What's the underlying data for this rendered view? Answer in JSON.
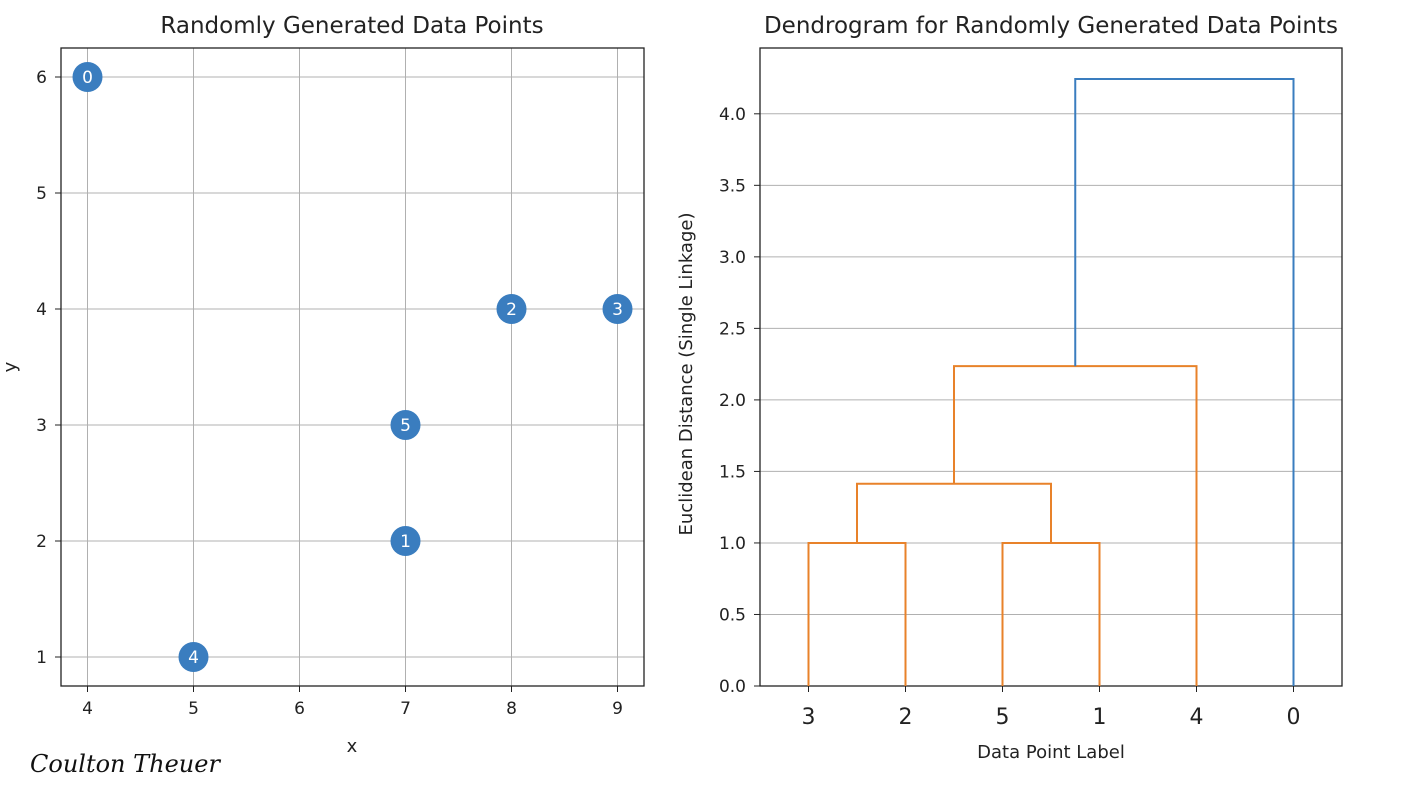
{
  "chart_data": [
    {
      "type": "scatter",
      "title": "Randomly Generated Data Points",
      "xlabel": "x",
      "ylabel": "y",
      "xlim": [
        3.75,
        9.25
      ],
      "ylim": [
        0.75,
        6.25
      ],
      "xticks": [
        "4",
        "5",
        "6",
        "7",
        "8",
        "9"
      ],
      "yticks": [
        "1",
        "2",
        "3",
        "4",
        "5",
        "6"
      ],
      "grid": true,
      "marker_color": "#3a7dbf",
      "points": [
        {
          "label": "0",
          "x": 4,
          "y": 6
        },
        {
          "label": "1",
          "x": 7,
          "y": 2
        },
        {
          "label": "2",
          "x": 8,
          "y": 4
        },
        {
          "label": "3",
          "x": 9,
          "y": 4
        },
        {
          "label": "4",
          "x": 5,
          "y": 1
        },
        {
          "label": "5",
          "x": 7,
          "y": 3
        }
      ]
    },
    {
      "type": "dendrogram",
      "title": "Dendrogram for Randomly Generated Data Points",
      "xlabel": "Data Point Label",
      "ylabel": "Euclidean Distance (Single Linkage)",
      "ylim": [
        0,
        4.46
      ],
      "yticks": [
        "0.0",
        "0.5",
        "1.0",
        "1.5",
        "2.0",
        "2.5",
        "3.0",
        "3.5",
        "4.0"
      ],
      "grid": true,
      "leaf_order": [
        "3",
        "2",
        "5",
        "1",
        "4",
        "0"
      ],
      "cluster_color": "#e8822a",
      "link_color": "#3a7dbf",
      "merges": [
        {
          "left": "3",
          "right": "2",
          "distance": 1.0,
          "color": "#e8822a"
        },
        {
          "left": "5",
          "right": "1",
          "distance": 1.0,
          "color": "#e8822a"
        },
        {
          "left": "3-2",
          "right": "5-1",
          "distance": 1.414,
          "color": "#e8822a"
        },
        {
          "left": "3-2-5-1",
          "right": "4",
          "distance": 2.236,
          "color": "#e8822a"
        },
        {
          "left": "3-2-5-1-4",
          "right": "0",
          "distance": 4.243,
          "color": "#3a7dbf"
        }
      ]
    }
  ],
  "signature": "Coulton Theuer"
}
